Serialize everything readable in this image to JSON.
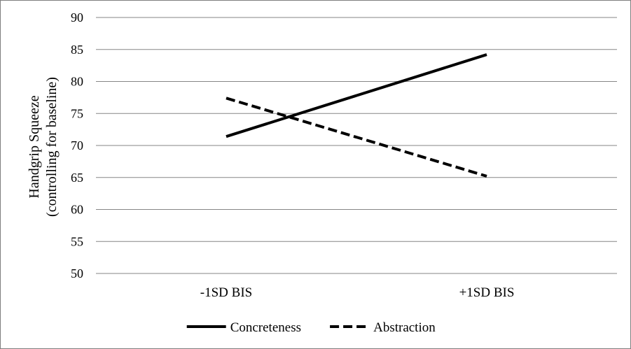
{
  "chart_data": {
    "type": "line",
    "categories": [
      "-1SD BIS",
      "+1SD BIS"
    ],
    "series": [
      {
        "name": "Concreteness",
        "values": [
          71.4,
          84.2
        ],
        "style": "solid",
        "color": "#000000"
      },
      {
        "name": "Abstraction",
        "values": [
          77.4,
          65.2
        ],
        "style": "dashed",
        "color": "#000000"
      }
    ],
    "title": "",
    "xlabel": "",
    "ylabel_lines": [
      "Handgrip Squeeze",
      "(controlling for baseline)"
    ],
    "ylim": [
      50,
      90
    ],
    "yticks": [
      50,
      55,
      60,
      65,
      70,
      75,
      80,
      85,
      90
    ],
    "grid": true,
    "gridColor": "#868686",
    "legend_position": "bottom"
  }
}
